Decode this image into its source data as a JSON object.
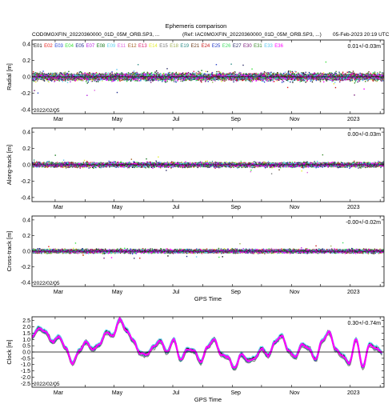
{
  "header": {
    "title": "Ephemeris comparison",
    "left_file": "COD0MGXFIN_20220360000_01D_05M_ORB.SP3, ...",
    "ref_file": "(Ref: IAC0MGXFIN_20220360000_01D_05M_ORB.SP3, ...)",
    "timestamp": "05-Feb-2023 20:19 UTC"
  },
  "colors": {
    "E01": "#111111",
    "E02": "#e8211d",
    "E03": "#1f3fd6",
    "E04": "#39e03b",
    "E05": "#1c2a8c",
    "E07": "#b51ee0",
    "E08": "#1a7a20",
    "E09": "#5fd0ee",
    "E11": "#dd66dd",
    "E12": "#a05a1c",
    "E13": "#d81a6a",
    "E14": "#e4ee30",
    "E15": "#777777",
    "E18": "#9fb055",
    "E19": "#2a8a84",
    "E21": "#6b3a1a",
    "E24": "#c61a1a",
    "E25": "#2a40c8",
    "E26": "#44dd66",
    "E27": "#2a2a66",
    "E30": "#7a1a7a",
    "E31": "#3b8a2c",
    "E33": "#58c4ee",
    "E36": "#ff00ff",
    "axis": "#000000",
    "zero_line": "#000000"
  },
  "chart_data": [
    {
      "type": "scatter",
      "panel": "radial",
      "ylabel": "Radial [m]",
      "xlabel": "",
      "ylim": [
        -0.45,
        0.45
      ],
      "yticks": [
        -0.4,
        -0.2,
        0.0,
        0.2,
        0.4
      ],
      "ytick_labels": [
        "-0.4",
        "-0.2",
        "0.0",
        "0.2",
        "0.4"
      ],
      "xlim": [
        "2022-02-05",
        "2023-02-05"
      ],
      "xtick_labels": [
        "Mar",
        "May",
        "Jul",
        "Sep",
        "Nov",
        "2023"
      ],
      "xticks": [
        "2022-03-01",
        "2022-05-01",
        "2022-07-01",
        "2022-09-01",
        "2022-11-01",
        "2023-01-01"
      ],
      "stat": "0.01+/-0.03m",
      "start_label": "2022/02/05",
      "legend": [
        "E01",
        "E02",
        "E03",
        "E04",
        "E05",
        "E07",
        "E08",
        "E09",
        "E11",
        "E12",
        "E13",
        "E14",
        "E15",
        "E18",
        "E19",
        "E21",
        "E24",
        "E25",
        "E26",
        "E27",
        "E30",
        "E31",
        "E33",
        "E36"
      ],
      "grid": false,
      "series_spread_m": 0.05
    },
    {
      "type": "scatter",
      "panel": "along-track",
      "ylabel": "Along-track [m]",
      "xlabel": "",
      "ylim": [
        -0.45,
        0.45
      ],
      "yticks": [
        -0.4,
        -0.2,
        0.0,
        0.2,
        0.4
      ],
      "ytick_labels": [
        "-0.4",
        "-0.2",
        "0.0",
        "0.2",
        "0.4"
      ],
      "xlim": [
        "2022-02-05",
        "2023-02-05"
      ],
      "xtick_labels": [
        "Mar",
        "May",
        "Jul",
        "Sep",
        "Nov",
        "2023"
      ],
      "xticks": [
        "2022-03-01",
        "2022-05-01",
        "2022-07-01",
        "2022-09-01",
        "2022-11-01",
        "2023-01-01"
      ],
      "stat": "0.00+/-0.03m",
      "grid": false,
      "series_spread_m": 0.03
    },
    {
      "type": "scatter",
      "panel": "cross-track",
      "ylabel": "Cross-track [m]",
      "xlabel": "GPS Time",
      "ylim": [
        -0.45,
        0.45
      ],
      "yticks": [
        -0.4,
        -0.2,
        0.0,
        0.2,
        0.4
      ],
      "ytick_labels": [
        "-0.4",
        "-0.2",
        "0.0",
        "0.2",
        "0.4"
      ],
      "xlim": [
        "2022-02-05",
        "2023-02-05"
      ],
      "xtick_labels": [
        "Mar",
        "May",
        "Jul",
        "Sep",
        "Nov",
        "2023"
      ],
      "xticks": [
        "2022-03-01",
        "2022-05-01",
        "2022-07-01",
        "2022-09-01",
        "2022-11-01",
        "2023-01-01"
      ],
      "stat": "-0.00+/-0.02m",
      "start_label": "2022/02/05",
      "grid": false,
      "series_spread_m": 0.025
    },
    {
      "type": "line",
      "panel": "clock",
      "ylabel": "Clock [m]",
      "xlabel": "GPS Time",
      "ylim": [
        -2.8,
        2.8
      ],
      "yticks": [
        -2.5,
        -2.0,
        -1.5,
        -1.0,
        -0.5,
        0.0,
        0.5,
        1.0,
        1.5,
        2.0,
        2.5
      ],
      "ytick_labels": [
        "-2.5",
        "-2.0",
        "-1.5",
        "-1.0",
        "-0.5",
        "0.0",
        "0.5",
        "1.0",
        "1.5",
        "2.0",
        "2.5"
      ],
      "xlim": [
        "2022-02-05",
        "2023-02-05"
      ],
      "xtick_labels": [
        "Mar",
        "May",
        "Jul",
        "Sep",
        "Nov",
        "2023"
      ],
      "xticks": [
        "2022-03-01",
        "2022-05-01",
        "2022-07-01",
        "2022-09-01",
        "2022-11-01",
        "2023-01-01"
      ],
      "stat": "0.30+/-0.74m",
      "start_label": "2022/02/05",
      "grid": false,
      "x": [
        "2022-02-05",
        "2022-02-12",
        "2022-02-19",
        "2022-02-26",
        "2022-03-05",
        "2022-03-12",
        "2022-03-19",
        "2022-03-26",
        "2022-04-02",
        "2022-04-09",
        "2022-04-16",
        "2022-04-23",
        "2022-04-30",
        "2022-05-07",
        "2022-05-14",
        "2022-05-21",
        "2022-05-28",
        "2022-06-04",
        "2022-06-11",
        "2022-06-18",
        "2022-06-25",
        "2022-07-02",
        "2022-07-09",
        "2022-07-16",
        "2022-07-23",
        "2022-07-30",
        "2022-08-06",
        "2022-08-13",
        "2022-08-20",
        "2022-08-27",
        "2022-09-03",
        "2022-09-10",
        "2022-09-17",
        "2022-09-24",
        "2022-10-01",
        "2022-10-08",
        "2022-10-15",
        "2022-10-22",
        "2022-10-29",
        "2022-11-05",
        "2022-11-12",
        "2022-11-19",
        "2022-11-26",
        "2022-12-03",
        "2022-12-10",
        "2022-12-17",
        "2022-12-24",
        "2022-12-31",
        "2023-01-07",
        "2023-01-14",
        "2023-01-21",
        "2023-01-28",
        "2023-02-04"
      ],
      "values": [
        1.2,
        1.9,
        1.6,
        0.8,
        1.2,
        0.3,
        -0.9,
        0.1,
        0.8,
        0.2,
        0.6,
        1.6,
        1.3,
        2.6,
        1.7,
        0.9,
        -0.1,
        -0.2,
        0.4,
        0.9,
        0.0,
        1.0,
        -0.6,
        0.2,
        0.1,
        -0.8,
        0.4,
        1.0,
        -0.2,
        -0.4,
        -1.3,
        -0.2,
        -0.7,
        -0.5,
        0.3,
        -0.3,
        0.8,
        1.3,
        0.1,
        -0.4,
        0.6,
        0.3,
        -0.6,
        0.9,
        1.6,
        0.2,
        -0.3,
        -0.9,
        1.0,
        -1.2,
        0.6,
        0.3,
        -0.1
      ]
    }
  ]
}
